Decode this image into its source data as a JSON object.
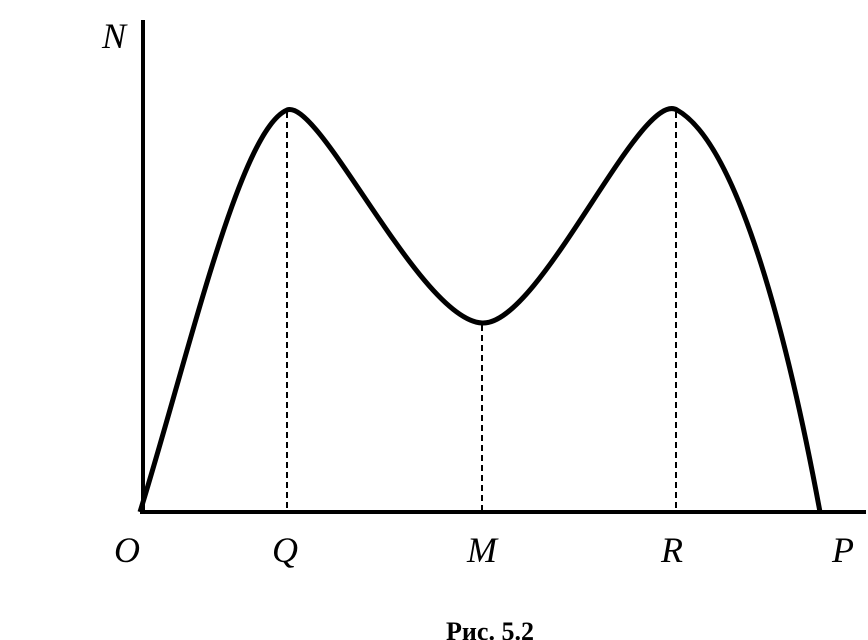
{
  "axes": {
    "y_label": "N",
    "origin_label": "O",
    "x_end_label": "P"
  },
  "points": [
    "Q",
    "M",
    "R"
  ],
  "caption": "Рис. 5.2"
}
